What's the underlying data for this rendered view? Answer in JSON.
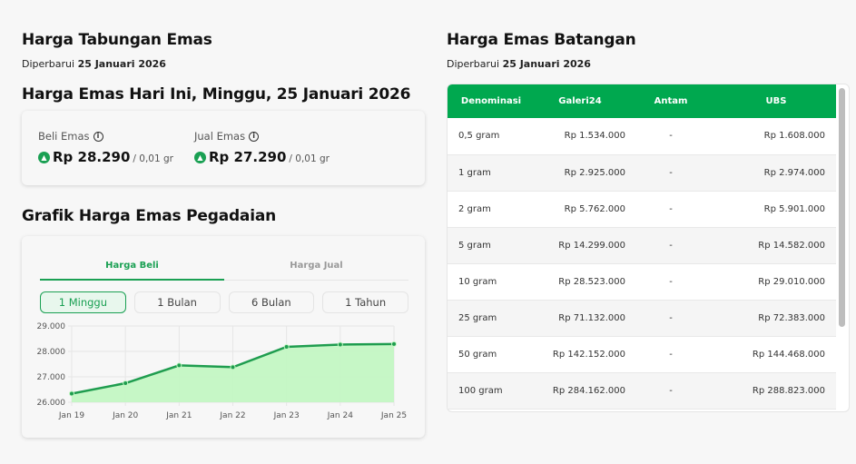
{
  "tabungan": {
    "title": "Harga Tabungan Emas",
    "updated_prefix": "Diperbarui",
    "updated_date": "25 Januari 2026",
    "today_title": "Harga Emas Hari Ini, Minggu, 25 Januari 2026",
    "beli": {
      "label": "Beli Emas",
      "icon": "info-icon",
      "trend_icon": "chevron-up-icon",
      "value": "Rp 28.290",
      "unit": "/ 0,01 gr"
    },
    "jual": {
      "label": "Jual Emas",
      "icon": "info-icon",
      "trend_icon": "chevron-up-icon",
      "value": "Rp 27.290",
      "unit": "/ 0,01 gr"
    }
  },
  "grafik": {
    "title": "Grafik Harga Emas Pegadaian",
    "tabs": [
      {
        "label": "Harga Beli",
        "active": true
      },
      {
        "label": "Harga Jual",
        "active": false
      }
    ],
    "ranges": [
      {
        "label": "1 Minggu",
        "active": true
      },
      {
        "label": "1 Bulan"
      },
      {
        "label": "6 Bulan"
      },
      {
        "label": "1 Tahun"
      }
    ]
  },
  "chart_data": {
    "type": "area",
    "title": "",
    "categories": [
      "Jan 19",
      "Jan 20",
      "Jan 21",
      "Jan 22",
      "Jan 23",
      "Jan 24",
      "Jan 25"
    ],
    "series": [
      {
        "name": "Harga Beli",
        "values": [
          26340,
          26750,
          27450,
          27380,
          28180,
          28270,
          28290
        ]
      }
    ],
    "yticks": [
      "29.000",
      "28.000",
      "27.000",
      "26.000"
    ],
    "ylim": [
      26000,
      29000
    ],
    "grid": true,
    "colors": {
      "line": "#1f9d4f",
      "fill": "#c3f7c3"
    }
  },
  "batangan": {
    "title": "Harga Emas Batangan",
    "updated_prefix": "Diperbarui",
    "updated_date": "25 Januari 2026",
    "columns": [
      "Denominasi",
      "Galeri24",
      "Antam",
      "UBS"
    ],
    "rows": [
      [
        "0,5 gram",
        "Rp 1.534.000",
        "-",
        "Rp 1.608.000"
      ],
      [
        "1 gram",
        "Rp 2.925.000",
        "-",
        "Rp 2.974.000"
      ],
      [
        "2 gram",
        "Rp 5.762.000",
        "-",
        "Rp 5.901.000"
      ],
      [
        "5 gram",
        "Rp 14.299.000",
        "-",
        "Rp 14.582.000"
      ],
      [
        "10 gram",
        "Rp 28.523.000",
        "-",
        "Rp 29.010.000"
      ],
      [
        "25 gram",
        "Rp 71.132.000",
        "-",
        "Rp 72.383.000"
      ],
      [
        "50 gram",
        "Rp 142.152.000",
        "-",
        "Rp 144.468.000"
      ],
      [
        "100 gram",
        "Rp 284.162.000",
        "-",
        "Rp 288.823.000"
      ]
    ]
  },
  "colors": {
    "accent": "#1aa053",
    "table_header": "#00a84f"
  }
}
